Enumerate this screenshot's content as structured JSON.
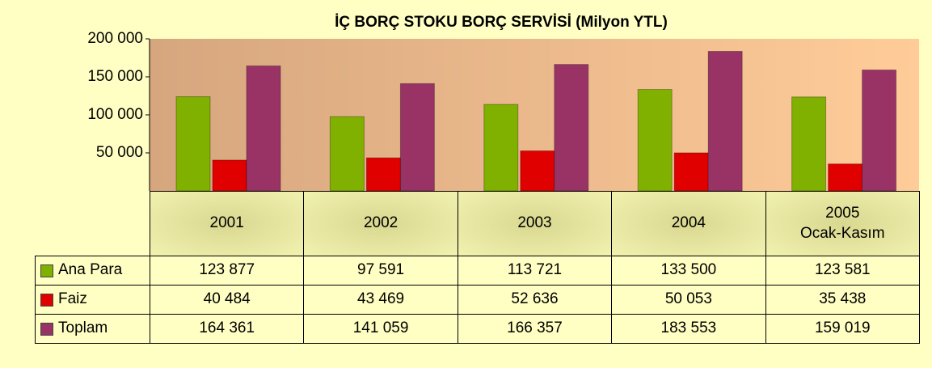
{
  "chart_data": {
    "type": "bar",
    "title": "İÇ BORÇ STOKU BORÇ SERVİSİ (Milyon YTL)",
    "categories": [
      "2001",
      "2002",
      "2003",
      "2004",
      "2005\nOcak-Kasım"
    ],
    "series": [
      {
        "name": "Ana Para",
        "color": "#80b000",
        "values": [
          123877,
          97591,
          113721,
          133500,
          123581
        ],
        "value_labels": [
          "123 877",
          "97 591",
          "113 721",
          "133 500",
          "123 581"
        ]
      },
      {
        "name": "Faiz",
        "color": "#e00000",
        "values": [
          40484,
          43469,
          52636,
          50053,
          35438
        ],
        "value_labels": [
          "40 484",
          "43 469",
          "52 636",
          "50 053",
          "35 438"
        ]
      },
      {
        "name": "Toplam",
        "color": "#993366",
        "values": [
          164361,
          141059,
          166357,
          183553,
          159019
        ],
        "value_labels": [
          "164 361",
          "141 059",
          "166 357",
          "183 553",
          "159 019"
        ]
      }
    ],
    "ylim": [
      0,
      200000
    ],
    "yticks": [
      {
        "value": 50000,
        "label": "50 000"
      },
      {
        "value": 100000,
        "label": "100 000"
      },
      {
        "value": 150000,
        "label": "150 000"
      },
      {
        "value": 200000,
        "label": "200 000"
      }
    ],
    "grid": false
  }
}
